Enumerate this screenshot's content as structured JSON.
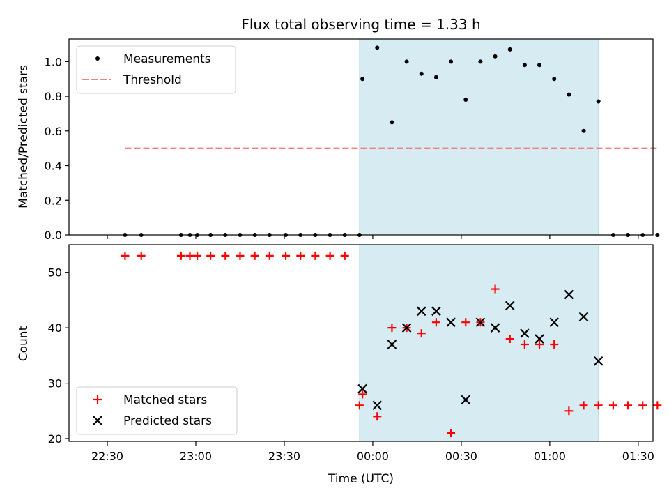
{
  "chart_data": {
    "title": "Flux total observing time = 1.33 h",
    "x_axis": {
      "label": "Time (UTC)",
      "unit": "minutes relative to 00:00 UTC",
      "range": [
        -43,
        155
      ],
      "ticks": [
        {
          "value": -30,
          "label": "22:30"
        },
        {
          "value": 0,
          "label": "23:00"
        },
        {
          "value": 30,
          "label": "23:30"
        },
        {
          "value": 60,
          "label": "00:00"
        },
        {
          "value": 90,
          "label": "00:30"
        },
        {
          "value": 120,
          "label": "01:00"
        },
        {
          "value": 150,
          "label": "01:30"
        }
      ]
    },
    "observing_window": {
      "start": 55.5,
      "end": 136.5,
      "color": "#add8e6"
    },
    "panels": [
      {
        "id": "ratio",
        "type": "scatter",
        "ylabel": "Matched/Predicted stars",
        "ylim": [
          0,
          1.13
        ],
        "yticks": [
          "0.0",
          "0.2",
          "0.4",
          "0.6",
          "0.8",
          "1.0"
        ],
        "series": [
          {
            "name": "Measurements",
            "marker": "dot",
            "color": "#000000",
            "x": [
              -24,
              -18.5,
              -5,
              -2,
              0.5,
              5,
              10,
              15,
              20,
              25,
              30.5,
              35.5,
              40.5,
              45.5,
              50.5,
              55.5,
              56.5,
              61.5,
              66.5,
              71.5,
              76.5,
              81.5,
              86.5,
              91.5,
              96.5,
              101.5,
              106.5,
              111.5,
              116.5,
              121.5,
              126.5,
              131.5,
              136.5,
              141.5,
              146.5,
              151.5,
              156.5
            ],
            "y": [
              0,
              0,
              0,
              0,
              0,
              0,
              0,
              0,
              0,
              0,
              0,
              0,
              0,
              0,
              0,
              0,
              0.9,
              1.08,
              0.65,
              1.0,
              0.93,
              0.91,
              1.0,
              0.78,
              1.0,
              1.03,
              1.07,
              0.98,
              0.98,
              0.9,
              0.81,
              0.6,
              0.77,
              0,
              0,
              0,
              0
            ]
          },
          {
            "name": "Threshold",
            "type": "line",
            "style": "dashed",
            "color": "#f08080",
            "x": [
              -24,
              156.5
            ],
            "y": [
              0.5,
              0.5
            ]
          }
        ],
        "legend_position": "upper-left"
      },
      {
        "id": "counts",
        "type": "scatter",
        "ylabel": "Count",
        "ylim": [
          19.5,
          55
        ],
        "yticks": [
          "20",
          "30",
          "40",
          "50"
        ],
        "series": [
          {
            "name": "Matched stars",
            "marker": "plus",
            "color": "#ff0000",
            "x": [
              -24,
              -18.5,
              -5,
              -2,
              0.5,
              5,
              10,
              15,
              20,
              25,
              30.5,
              35.5,
              40.5,
              45.5,
              50.5,
              55.5,
              56.5,
              61.5,
              66.5,
              71.5,
              76.5,
              81.5,
              86.5,
              91.5,
              96.5,
              101.5,
              106.5,
              111.5,
              116.5,
              121.5,
              126.5,
              131.5,
              136.5,
              141.5,
              146.5,
              151.5,
              156.5
            ],
            "y": [
              53,
              53,
              53,
              53,
              53,
              53,
              53,
              53,
              53,
              53,
              53,
              53,
              53,
              53,
              53,
              26,
              28,
              24,
              40,
              40,
              39,
              41,
              21,
              41,
              41,
              47,
              38,
              37,
              37,
              37,
              25,
              26,
              26,
              26,
              26,
              26,
              26
            ]
          },
          {
            "name": "Predicted stars",
            "marker": "x",
            "color": "#000000",
            "x": [
              56.5,
              61.5,
              66.5,
              71.5,
              76.5,
              81.5,
              86.5,
              91.5,
              96.5,
              101.5,
              106.5,
              111.5,
              116.5,
              121.5,
              126.5,
              131.5,
              136.5
            ],
            "y": [
              29,
              26,
              37,
              40,
              43,
              43,
              41,
              27,
              41,
              40,
              44,
              39,
              38,
              41,
              46,
              42,
              34
            ]
          }
        ],
        "legend_position": "lower-left"
      }
    ]
  }
}
